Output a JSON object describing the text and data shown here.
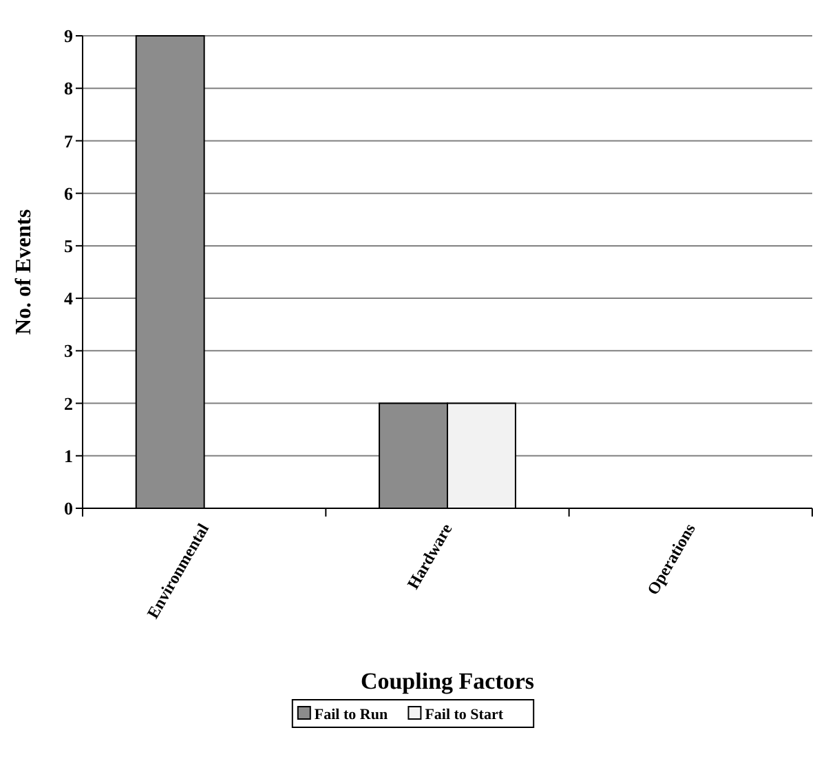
{
  "chart_data": {
    "type": "bar",
    "xlabel": "Coupling Factors",
    "ylabel": "No. of Events",
    "categories": [
      "Environmental",
      "Hardware",
      "Operations"
    ],
    "series": [
      {
        "name": "Fail to Run",
        "color": "#8c8c8c",
        "values": [
          9,
          2,
          0
        ]
      },
      {
        "name": "Fail to Start",
        "color": "#f2f2f2",
        "values": [
          0,
          2,
          0
        ]
      }
    ],
    "ylim": [
      0,
      9
    ],
    "yticks": [
      0,
      1,
      2,
      3,
      4,
      5,
      6,
      7,
      8,
      9
    ],
    "grid": "y",
    "legend": "bottom"
  }
}
